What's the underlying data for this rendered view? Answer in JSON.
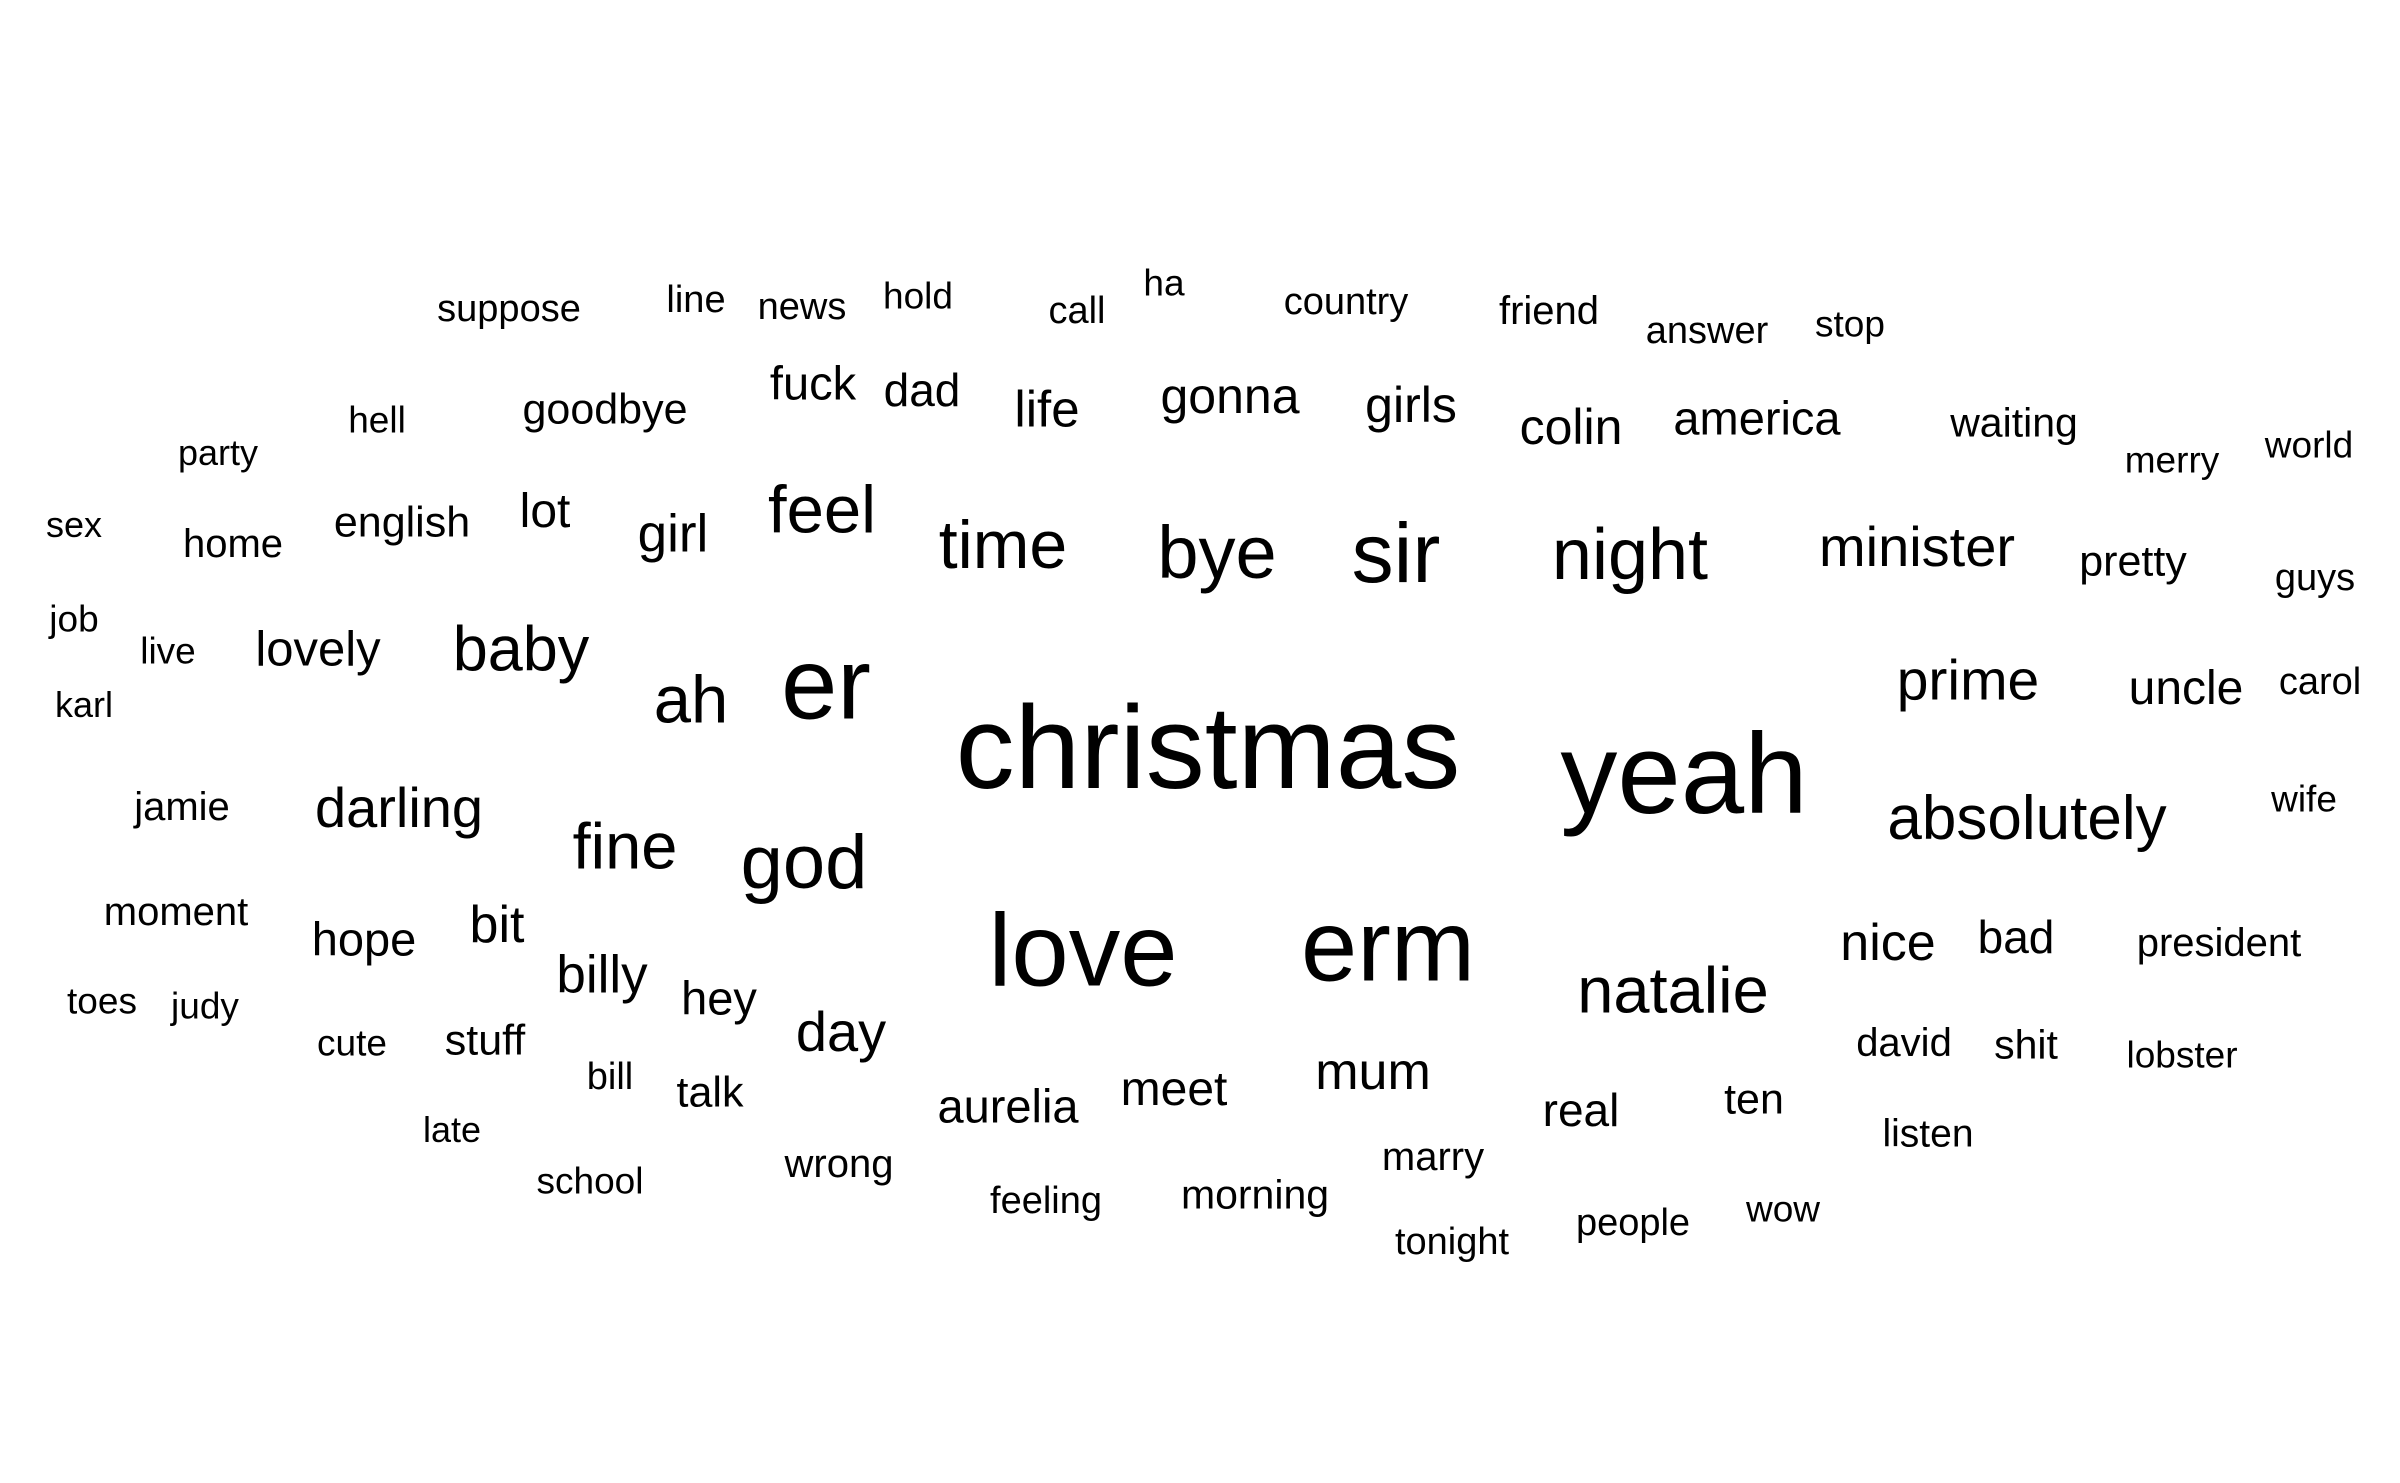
{
  "colors": {
    "background": "#ffffff",
    "text": "#000000"
  },
  "words": [
    {
      "text": "christmas",
      "size": 10
    },
    {
      "text": "yeah",
      "size": 9
    },
    {
      "text": "love",
      "size": 8
    },
    {
      "text": "erm",
      "size": 8
    },
    {
      "text": "er",
      "size": 8
    },
    {
      "text": "sir",
      "size": 6
    },
    {
      "text": "bye",
      "size": 5
    },
    {
      "text": "night",
      "size": 5
    },
    {
      "text": "time",
      "size": 5
    },
    {
      "text": "god",
      "size": 5
    },
    {
      "text": "natalie",
      "size": 5
    },
    {
      "text": "absolutely",
      "size": 5
    },
    {
      "text": "feel",
      "size": 5
    },
    {
      "text": "ah",
      "size": 5
    },
    {
      "text": "baby",
      "size": 5
    },
    {
      "text": "fine",
      "size": 5
    },
    {
      "text": "minister",
      "size": 4
    },
    {
      "text": "prime",
      "size": 4
    },
    {
      "text": "darling",
      "size": 4
    },
    {
      "text": "day",
      "size": 4
    },
    {
      "text": "mum",
      "size": 4
    },
    {
      "text": "nice",
      "size": 4
    },
    {
      "text": "girl",
      "size": 4
    },
    {
      "text": "bit",
      "size": 4
    },
    {
      "text": "billy",
      "size": 4
    },
    {
      "text": "gonna",
      "size": 3
    },
    {
      "text": "girls",
      "size": 3
    },
    {
      "text": "colin",
      "size": 3
    },
    {
      "text": "life",
      "size": 3
    },
    {
      "text": "america",
      "size": 3
    },
    {
      "text": "lot",
      "size": 3
    },
    {
      "text": "uncle",
      "size": 3
    },
    {
      "text": "bad",
      "size": 3
    },
    {
      "text": "meet",
      "size": 3
    },
    {
      "text": "aurelia",
      "size": 3
    },
    {
      "text": "real",
      "size": 3
    },
    {
      "text": "lovely",
      "size": 3
    },
    {
      "text": "hey",
      "size": 3
    },
    {
      "text": "hope",
      "size": 3
    },
    {
      "text": "fuck",
      "size": 3
    },
    {
      "text": "dad",
      "size": 3
    },
    {
      "text": "goodbye",
      "size": 2
    },
    {
      "text": "english",
      "size": 2
    },
    {
      "text": "pretty",
      "size": 2
    },
    {
      "text": "stuff",
      "size": 2
    },
    {
      "text": "waiting",
      "size": 2
    },
    {
      "text": "ten",
      "size": 2
    },
    {
      "text": "talk",
      "size": 2
    },
    {
      "text": "david",
      "size": 2
    },
    {
      "text": "shit",
      "size": 2
    },
    {
      "text": "president",
      "size": 2
    },
    {
      "text": "jamie",
      "size": 2
    },
    {
      "text": "moment",
      "size": 2
    },
    {
      "text": "morning",
      "size": 2
    },
    {
      "text": "wrong",
      "size": 2
    },
    {
      "text": "marry",
      "size": 2
    },
    {
      "text": "home",
      "size": 2
    },
    {
      "text": "country",
      "size": 2
    },
    {
      "text": "friend",
      "size": 2
    },
    {
      "text": "answer",
      "size": 2
    },
    {
      "text": "wife",
      "size": 2
    },
    {
      "text": "carol",
      "size": 2
    },
    {
      "text": "guys",
      "size": 2
    },
    {
      "text": "feeling",
      "size": 2
    },
    {
      "text": "people",
      "size": 2
    },
    {
      "text": "tonight",
      "size": 2
    },
    {
      "text": "wow",
      "size": 2
    },
    {
      "text": "listen",
      "size": 2
    },
    {
      "text": "lobster",
      "size": 2
    },
    {
      "text": "cute",
      "size": 2
    },
    {
      "text": "bill",
      "size": 2
    },
    {
      "text": "school",
      "size": 1
    },
    {
      "text": "late",
      "size": 1
    },
    {
      "text": "toes",
      "size": 1
    },
    {
      "text": "judy",
      "size": 1
    },
    {
      "text": "karl",
      "size": 1
    },
    {
      "text": "live",
      "size": 1
    },
    {
      "text": "job",
      "size": 1
    },
    {
      "text": "sex",
      "size": 1
    },
    {
      "text": "party",
      "size": 1
    },
    {
      "text": "hell",
      "size": 1
    },
    {
      "text": "suppose",
      "size": 1
    },
    {
      "text": "line",
      "size": 1
    },
    {
      "text": "news",
      "size": 1
    },
    {
      "text": "hold",
      "size": 1
    },
    {
      "text": "call",
      "size": 1
    },
    {
      "text": "ha",
      "size": 1
    },
    {
      "text": "stop",
      "size": 1
    },
    {
      "text": "merry",
      "size": 1
    },
    {
      "text": "world",
      "size": 1
    }
  ]
}
